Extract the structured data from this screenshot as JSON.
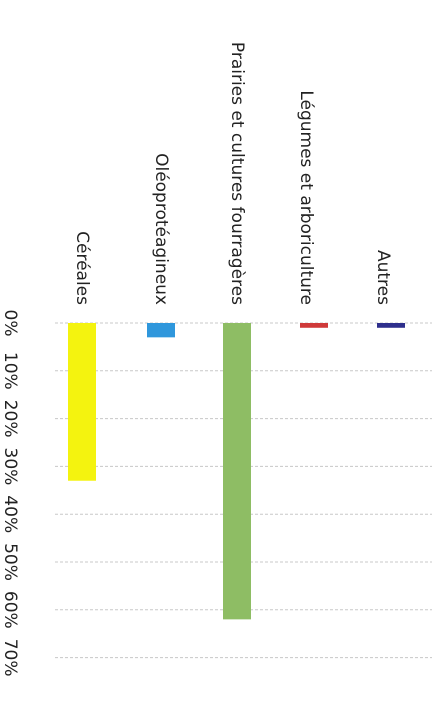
{
  "chart_data": {
    "type": "bar",
    "orientation": "rotated-90-clockwise",
    "categories": [
      "Céréales",
      "Oléoprotéagineux",
      "Prairies et cultures fourragères",
      "Légumes et arboriculture",
      "Autres"
    ],
    "values": [
      33,
      3,
      62,
      1,
      1
    ],
    "colors": [
      "#f4f30f",
      "#2f97dc",
      "#8ebd64",
      "#cf3a3a",
      "#2e2f8c"
    ],
    "ytick_labels": [
      "0%",
      "10%",
      "20%",
      "30%",
      "40%",
      "50%",
      "60%",
      "70%"
    ],
    "ylim": [
      0,
      70
    ],
    "grid": true
  }
}
